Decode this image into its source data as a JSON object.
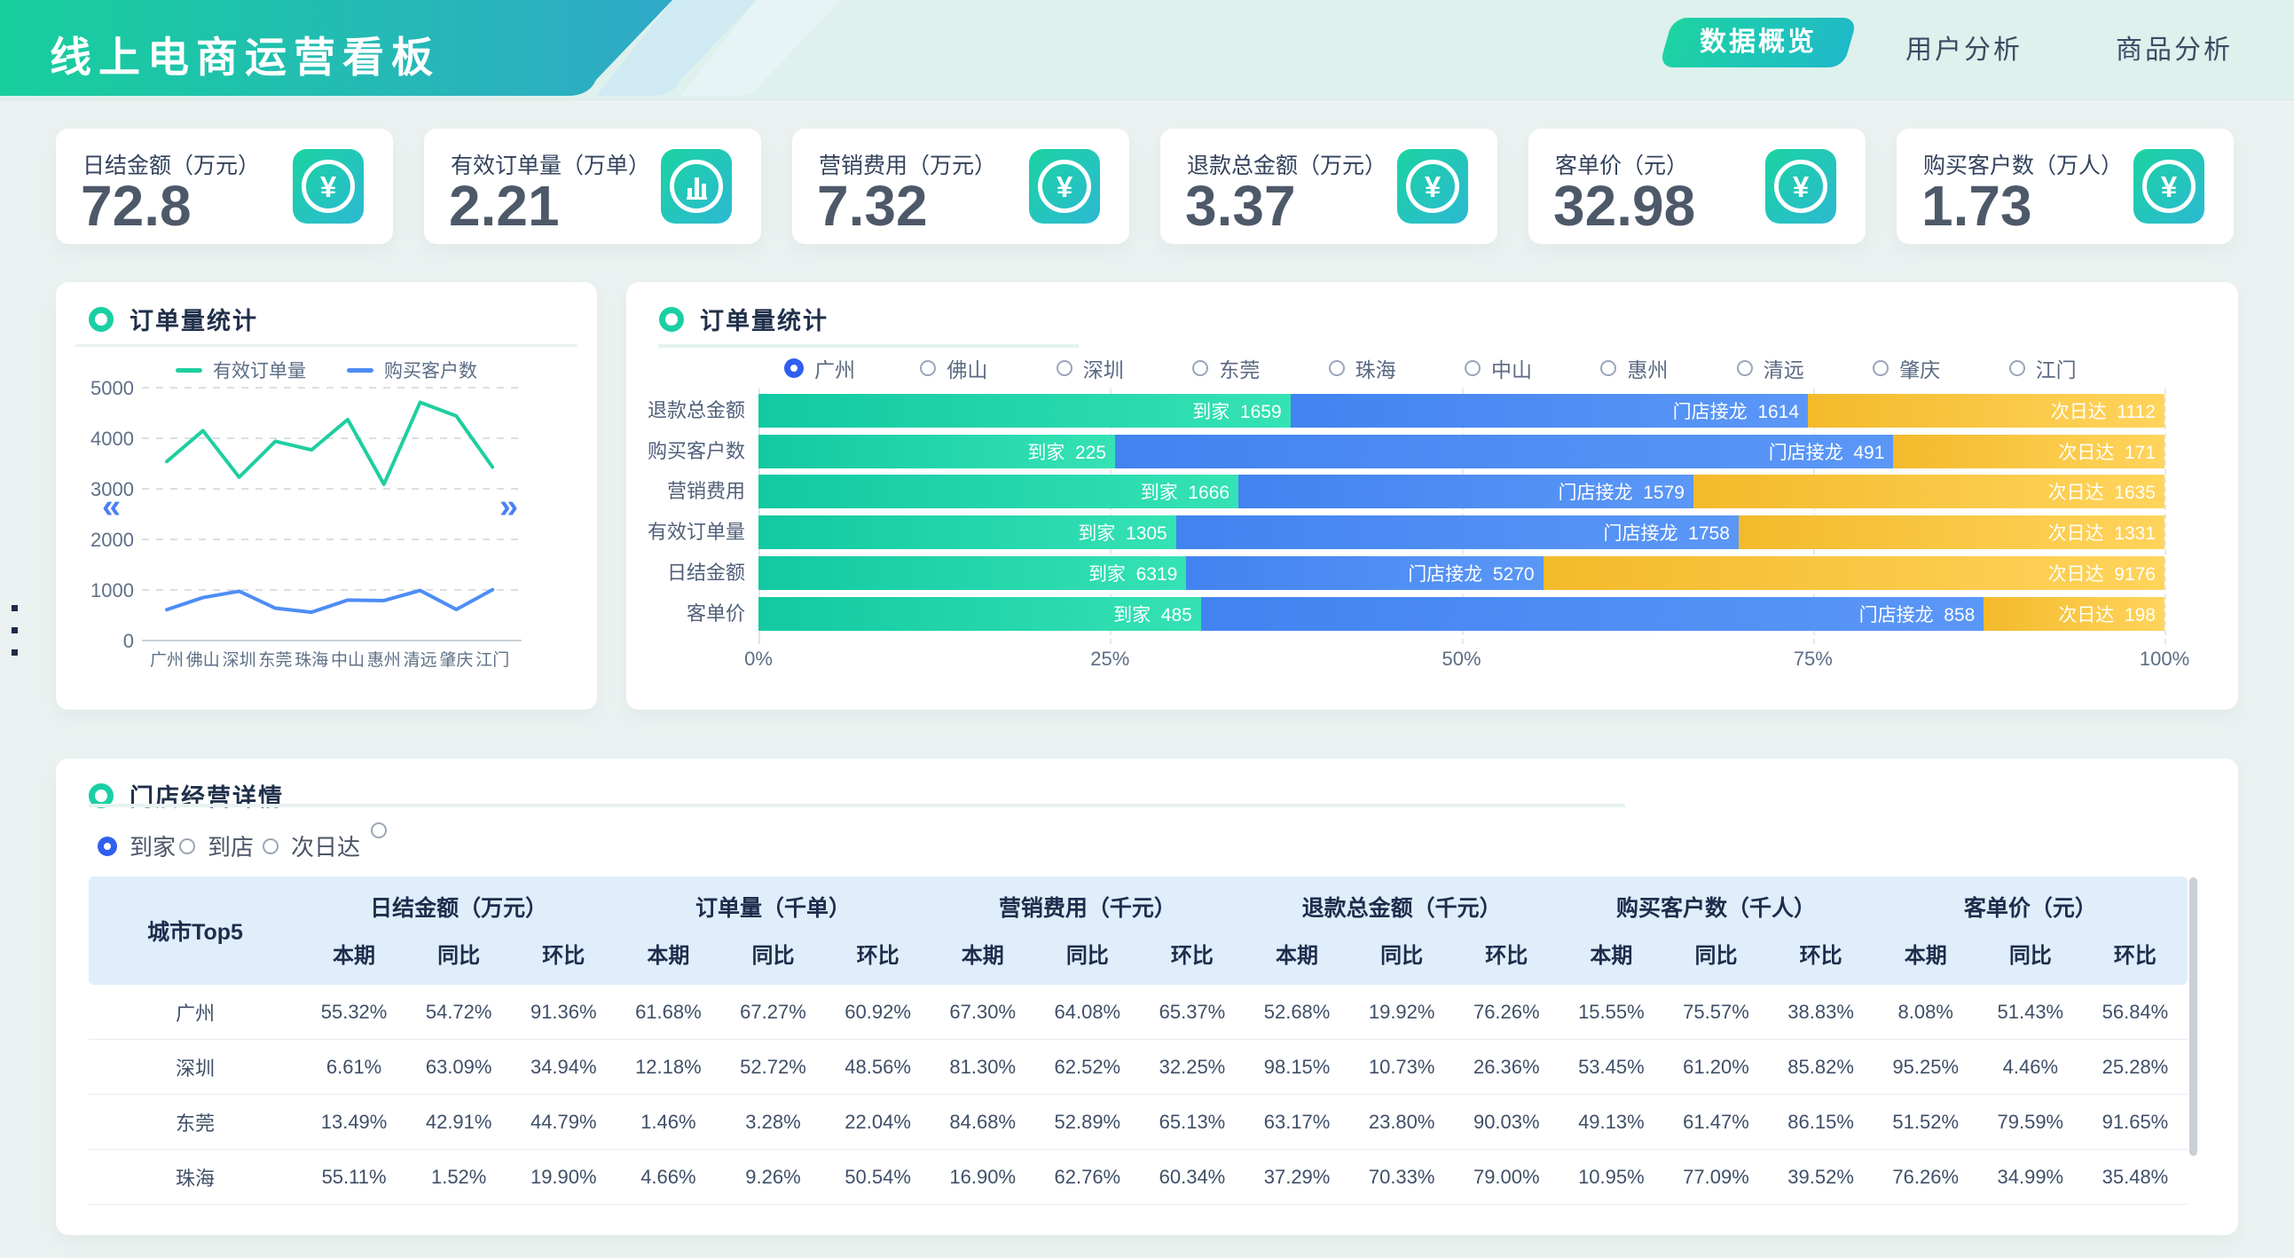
{
  "header": {
    "title": "线上电商运营看板",
    "tabs": [
      {
        "label": "数据概览",
        "active": true
      },
      {
        "label": "用户分析",
        "active": false
      },
      {
        "label": "商品分析",
        "active": false
      }
    ]
  },
  "kpi_cards": [
    {
      "label": "日结金额（万元）",
      "value": "72.8",
      "icon": "yen-icon"
    },
    {
      "label": "有效订单量（万单）",
      "value": "2.21",
      "icon": "bar-chart-icon"
    },
    {
      "label": "营销费用（万元）",
      "value": "7.32",
      "icon": "yen-icon"
    },
    {
      "label": "退款总金额（万元）",
      "value": "3.37",
      "icon": "yen-icon"
    },
    {
      "label": "客单价（元）",
      "value": "32.98",
      "icon": "yen-icon"
    },
    {
      "label": "购买客户数（万人）",
      "value": "1.73",
      "icon": "yen-icon"
    }
  ],
  "line_card": {
    "title": "订单量统计",
    "arrow_left": "«",
    "arrow_right": "»"
  },
  "bar_card": {
    "title": "订单量统计",
    "cities": [
      "广州",
      "佛山",
      "深圳",
      "东莞",
      "珠海",
      "中山",
      "惠州",
      "清远",
      "肇庆",
      "江门"
    ],
    "selected_city": "广州"
  },
  "chart_data": [
    {
      "type": "line",
      "title": "订单量统计",
      "categories": [
        "广州",
        "佛山",
        "深圳",
        "东莞",
        "珠海",
        "中山",
        "惠州",
        "清远",
        "肇庆",
        "江门"
      ],
      "series": [
        {
          "name": "有效订单量",
          "color": "#1fcea0",
          "values": [
            3540,
            4150,
            3230,
            3940,
            3770,
            4370,
            3090,
            4710,
            4440,
            3430
          ]
        },
        {
          "name": "购买客户数",
          "color": "#4d8df5",
          "values": [
            610,
            850,
            975,
            640,
            560,
            800,
            790,
            990,
            615,
            1005
          ]
        }
      ],
      "ylim": [
        0,
        5000
      ],
      "yticks": [
        0,
        1000,
        2000,
        3000,
        4000,
        5000
      ],
      "grid": true,
      "legend_position": "top"
    },
    {
      "type": "bar",
      "title": "订单量统计",
      "orientation": "horizontal-stacked-percent",
      "categories": [
        "退款总金额",
        "购买客户数",
        "营销费用",
        "有效订单量",
        "日结金额",
        "客单价"
      ],
      "series": [
        {
          "name": "到家",
          "color": "teal",
          "values": [
            1659,
            225,
            1666,
            1305,
            6319,
            485
          ]
        },
        {
          "name": "门店接龙",
          "color": "blue",
          "values": [
            1614,
            491,
            1579,
            1758,
            5270,
            858
          ]
        },
        {
          "name": "次日达",
          "color": "yellow",
          "values": [
            1112,
            171,
            1635,
            1331,
            9176,
            198
          ]
        }
      ],
      "x_ticks": [
        "0%",
        "25%",
        "50%",
        "75%",
        "100%"
      ]
    }
  ],
  "store_detail": {
    "title": "门店经营详情",
    "filters": [
      "到家",
      "到店",
      "次日达"
    ],
    "selected_filter": "到家",
    "city_col_header": "城市Top5",
    "groups": [
      "日结金额（万元）",
      "订单量（千单）",
      "营销费用（千元）",
      "退款总金额（千元）",
      "购买客户数（千人）",
      "客单价（元）"
    ],
    "sub_headers": [
      "本期",
      "同比",
      "环比"
    ],
    "rows": [
      {
        "city": "广州",
        "values": [
          "55.32%",
          "54.72%",
          "91.36%",
          "61.68%",
          "67.27%",
          "60.92%",
          "67.30%",
          "64.08%",
          "65.37%",
          "52.68%",
          "19.92%",
          "76.26%",
          "15.55%",
          "75.57%",
          "38.83%",
          "8.08%",
          "51.43%",
          "56.84%"
        ]
      },
      {
        "city": "深圳",
        "values": [
          "6.61%",
          "63.09%",
          "34.94%",
          "12.18%",
          "52.72%",
          "48.56%",
          "81.30%",
          "62.52%",
          "32.25%",
          "98.15%",
          "10.73%",
          "26.36%",
          "53.45%",
          "61.20%",
          "85.82%",
          "95.25%",
          "4.46%",
          "25.28%"
        ]
      },
      {
        "city": "东莞",
        "values": [
          "13.49%",
          "42.91%",
          "44.79%",
          "1.46%",
          "3.28%",
          "22.04%",
          "84.68%",
          "52.89%",
          "65.13%",
          "63.17%",
          "23.80%",
          "90.03%",
          "49.13%",
          "61.47%",
          "86.15%",
          "51.52%",
          "79.59%",
          "91.65%"
        ]
      },
      {
        "city": "珠海",
        "values": [
          "55.11%",
          "1.52%",
          "19.90%",
          "4.66%",
          "9.26%",
          "50.54%",
          "16.90%",
          "62.76%",
          "60.34%",
          "37.29%",
          "70.33%",
          "79.00%",
          "10.95%",
          "77.09%",
          "39.52%",
          "76.26%",
          "34.99%",
          "35.48%"
        ]
      }
    ]
  },
  "colors": {
    "teal_grad_a": "#12c9a2",
    "teal_grad_b": "#35e2b4",
    "blue_a": "#4283f0",
    "blue_b": "#5b97f7",
    "yellow_a": "#f3ba2b",
    "yellow_b": "#ffd45c",
    "line_teal": "#1fcea0",
    "line_blue": "#4d8df5"
  }
}
